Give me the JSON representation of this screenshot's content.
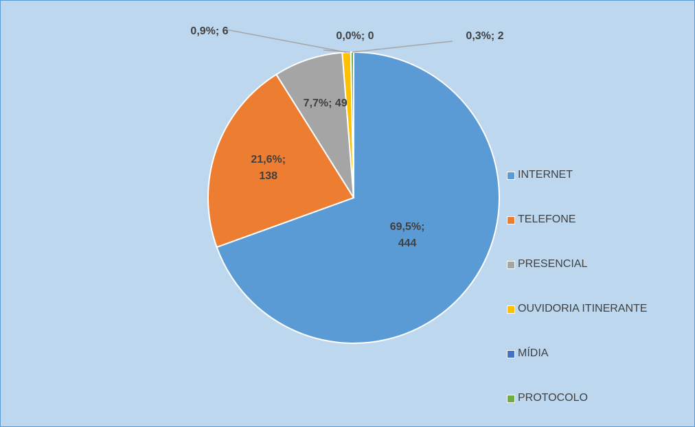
{
  "chart_data": {
    "type": "pie",
    "categories": [
      "INTERNET",
      "TELEFONE",
      "PRESENCIAL",
      "OUVIDORIA ITINERANTE",
      "MÍDIA",
      "PROTOCOLO"
    ],
    "values": [
      444,
      138,
      49,
      6,
      0,
      2
    ],
    "value_labels": [
      "69,5%; 444",
      "21,6%; 138",
      "7,7%; 49",
      "0,9%; 6",
      "0,0%; 0",
      "0,3%; 2"
    ],
    "colors": [
      "#5b9bd5",
      "#ed7d31",
      "#a5a5a5",
      "#ffc000",
      "#4472c4",
      "#70ad47"
    ],
    "legend": "right"
  }
}
